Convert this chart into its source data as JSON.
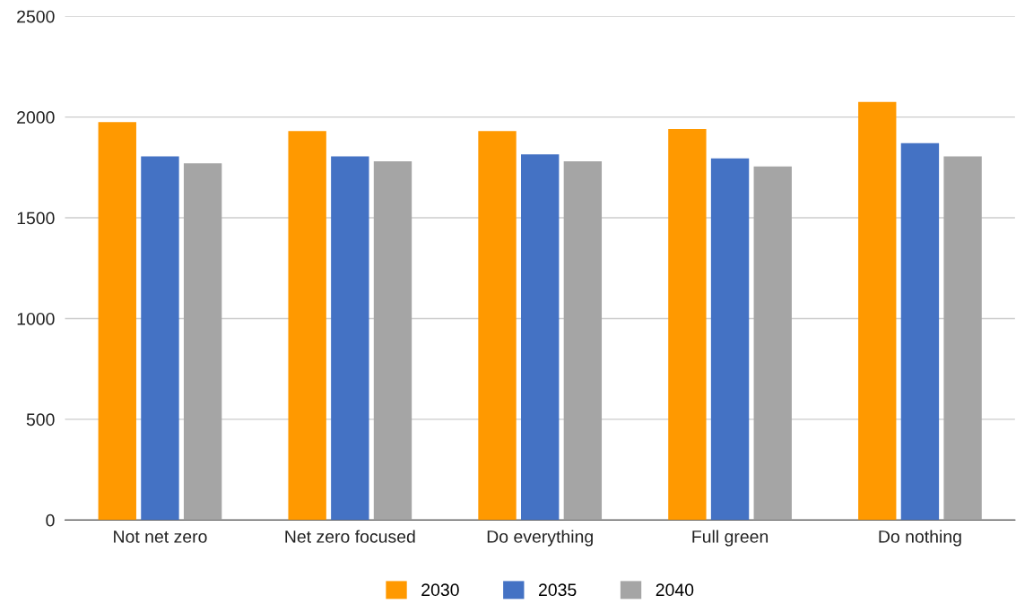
{
  "chart_data": {
    "type": "bar",
    "categories": [
      "Not net zero",
      "Net zero focused",
      "Do everything",
      "Full green",
      "Do nothing"
    ],
    "series": [
      {
        "name": "2030",
        "color": "#ff9900",
        "values": [
          1975,
          1930,
          1930,
          1940,
          2075
        ]
      },
      {
        "name": "2035",
        "color": "#4472c4",
        "values": [
          1805,
          1805,
          1815,
          1795,
          1870
        ]
      },
      {
        "name": "2040",
        "color": "#a5a5a5",
        "values": [
          1770,
          1780,
          1780,
          1755,
          1805
        ]
      }
    ],
    "ylim": [
      0,
      2500
    ],
    "yticks": [
      0,
      500,
      1000,
      1500,
      2000,
      2500
    ],
    "grid": "y",
    "legend": "bottom"
  }
}
